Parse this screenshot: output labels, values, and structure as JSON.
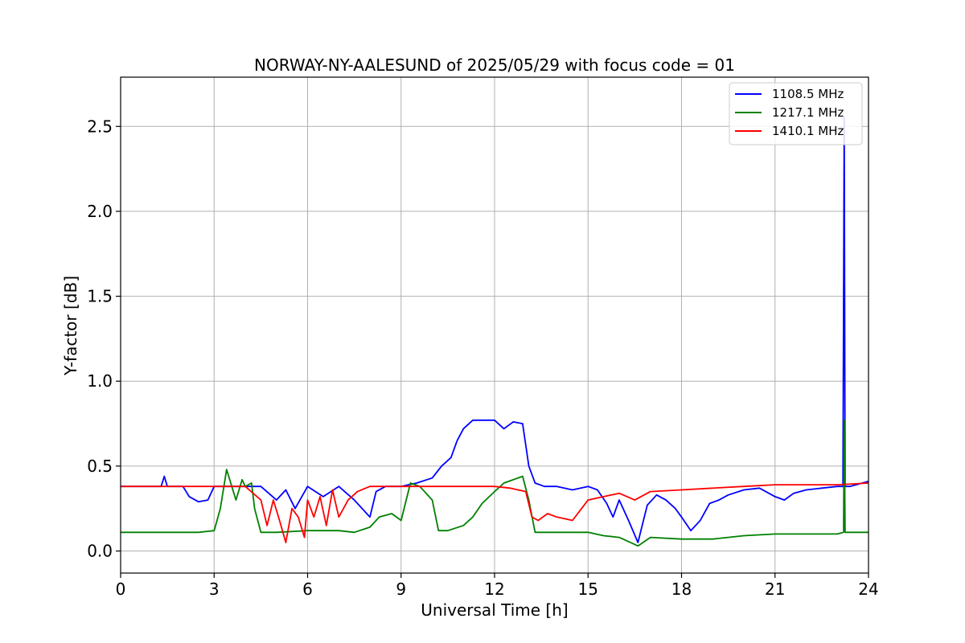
{
  "chart_data": {
    "type": "line",
    "title": "NORWAY-NY-AALESUND of 2025/05/29 with focus code = 01",
    "xlabel": "Universal Time [h]",
    "ylabel": "Y-factor [dB]",
    "xlim": [
      0,
      24
    ],
    "ylim": [
      -0.13,
      2.79
    ],
    "xticks": [
      0,
      3,
      6,
      9,
      12,
      15,
      18,
      21,
      24
    ],
    "yticks": [
      0.0,
      0.5,
      1.0,
      1.5,
      2.0,
      2.5
    ],
    "xtick_labels": [
      "0",
      "3",
      "6",
      "9",
      "12",
      "15",
      "18",
      "21",
      "24"
    ],
    "ytick_labels": [
      "0.0",
      "0.5",
      "1.0",
      "1.5",
      "2.0",
      "2.5"
    ],
    "grid": true,
    "legend_position": "top-right",
    "series": [
      {
        "name": "1108.5 MHz",
        "color": "#0000ff",
        "x": [
          0,
          0.5,
          1.0,
          1.3,
          1.4,
          1.5,
          2.0,
          2.2,
          2.5,
          2.8,
          3.0,
          3.5,
          4.0,
          4.5,
          5.0,
          5.3,
          5.6,
          6.0,
          6.5,
          7.0,
          7.5,
          8.0,
          8.2,
          8.5,
          9.0,
          9.5,
          10.0,
          10.3,
          10.6,
          10.8,
          11.0,
          11.3,
          11.6,
          12.0,
          12.3,
          12.6,
          12.9,
          13.1,
          13.3,
          13.6,
          14.0,
          14.5,
          15.0,
          15.3,
          15.6,
          15.8,
          16.0,
          16.3,
          16.6,
          16.9,
          17.2,
          17.5,
          17.8,
          18.0,
          18.3,
          18.6,
          18.9,
          19.2,
          19.5,
          20.0,
          20.5,
          21.0,
          21.3,
          21.6,
          22.0,
          22.5,
          23.0,
          23.18,
          23.22,
          23.25,
          23.4,
          23.8,
          24.0
        ],
        "y": [
          0.38,
          0.38,
          0.38,
          0.38,
          0.44,
          0.38,
          0.38,
          0.32,
          0.29,
          0.3,
          0.38,
          0.38,
          0.38,
          0.38,
          0.3,
          0.36,
          0.25,
          0.38,
          0.32,
          0.38,
          0.3,
          0.2,
          0.35,
          0.38,
          0.38,
          0.4,
          0.43,
          0.5,
          0.55,
          0.65,
          0.72,
          0.77,
          0.77,
          0.77,
          0.72,
          0.76,
          0.75,
          0.5,
          0.4,
          0.38,
          0.38,
          0.36,
          0.38,
          0.36,
          0.28,
          0.2,
          0.3,
          0.18,
          0.05,
          0.27,
          0.33,
          0.3,
          0.25,
          0.2,
          0.12,
          0.18,
          0.28,
          0.3,
          0.33,
          0.36,
          0.37,
          0.32,
          0.3,
          0.34,
          0.36,
          0.37,
          0.38,
          0.38,
          2.55,
          0.38,
          0.38,
          0.4,
          0.41
        ]
      },
      {
        "name": "1217.1 MHz",
        "color": "#008000",
        "x": [
          0,
          1.0,
          2.0,
          2.5,
          3.0,
          3.2,
          3.4,
          3.7,
          3.9,
          4.0,
          4.2,
          4.3,
          4.5,
          5.0,
          6.0,
          7.0,
          7.5,
          8.0,
          8.3,
          8.7,
          9.0,
          9.3,
          9.6,
          10.0,
          10.2,
          10.5,
          11.0,
          11.3,
          11.6,
          12.0,
          12.3,
          12.6,
          12.9,
          13.1,
          13.3,
          14.0,
          14.5,
          15.0,
          15.5,
          16.0,
          16.6,
          17.0,
          18.0,
          19.0,
          20.0,
          21.0,
          22.0,
          23.0,
          23.2,
          23.22,
          23.25,
          24.0
        ],
        "y": [
          0.11,
          0.11,
          0.11,
          0.11,
          0.12,
          0.25,
          0.48,
          0.3,
          0.42,
          0.38,
          0.4,
          0.25,
          0.11,
          0.11,
          0.12,
          0.12,
          0.11,
          0.14,
          0.2,
          0.22,
          0.18,
          0.4,
          0.38,
          0.3,
          0.12,
          0.12,
          0.15,
          0.2,
          0.28,
          0.35,
          0.4,
          0.42,
          0.44,
          0.3,
          0.11,
          0.11,
          0.11,
          0.11,
          0.09,
          0.08,
          0.03,
          0.08,
          0.07,
          0.07,
          0.09,
          0.1,
          0.1,
          0.1,
          0.11,
          0.77,
          0.11,
          0.11
        ]
      },
      {
        "name": "1410.1 MHz",
        "color": "#ff0000",
        "x": [
          0,
          1.0,
          2.0,
          3.0,
          4.0,
          4.5,
          4.7,
          4.9,
          5.1,
          5.3,
          5.5,
          5.7,
          5.9,
          6.0,
          6.2,
          6.4,
          6.6,
          6.8,
          7.0,
          7.3,
          7.6,
          8.0,
          9.0,
          10.0,
          11.0,
          12.0,
          12.5,
          13.0,
          13.2,
          13.4,
          13.7,
          14.0,
          14.5,
          15.0,
          15.5,
          16.0,
          16.5,
          17.0,
          18.0,
          19.0,
          20.0,
          21.0,
          22.0,
          23.0,
          24.0
        ],
        "y": [
          0.38,
          0.38,
          0.38,
          0.38,
          0.38,
          0.3,
          0.15,
          0.3,
          0.18,
          0.05,
          0.25,
          0.2,
          0.08,
          0.3,
          0.2,
          0.32,
          0.15,
          0.36,
          0.2,
          0.3,
          0.35,
          0.38,
          0.38,
          0.38,
          0.38,
          0.38,
          0.37,
          0.35,
          0.2,
          0.18,
          0.22,
          0.2,
          0.18,
          0.3,
          0.32,
          0.34,
          0.3,
          0.35,
          0.36,
          0.37,
          0.38,
          0.39,
          0.39,
          0.39,
          0.4
        ]
      }
    ]
  }
}
